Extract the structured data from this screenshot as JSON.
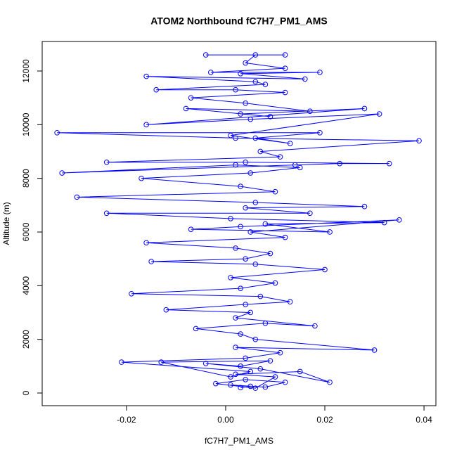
{
  "chart_data": {
    "type": "line",
    "title": "ATOM2 Northbound fC7H7_PM1_AMS",
    "x_label": "fC7H7_PM1_AMS",
    "y_label": "Altitude (m)",
    "color": "#0000ff",
    "marker": "circle",
    "grid": false,
    "xlim": [
      -0.037,
      0.0424
    ],
    "ylim": [
      -472,
      13100
    ],
    "xticks": [
      -0.02,
      {
        "value": 0,
        "label": "0.00"
      },
      0.02,
      0.04
    ],
    "yticks": [
      0,
      2000,
      4000,
      6000,
      8000,
      10000,
      12000
    ],
    "x": [
      0.003,
      0.005,
      0.001,
      0.008,
      0.012,
      0.004,
      -0.002,
      0.006,
      0.01,
      0.002,
      0.015,
      0.021,
      0.007,
      -0.004,
      0.003,
      0.009,
      -0.013,
      0.001,
      0.005,
      -0.021,
      0.004,
      0.011,
      0.002,
      0.03,
      0.006,
      0.003,
      -0.006,
      0.008,
      0.018,
      0.002,
      0.005,
      -0.012,
      0.004,
      0.013,
      0.007,
      -0.019,
      0.003,
      0.01,
      0.001,
      0.02,
      0.006,
      -0.015,
      0.004,
      0.009,
      0.002,
      -0.016,
      0.012,
      0.005,
      0.035,
      0.003,
      -0.007,
      0.021,
      0.008,
      0.032,
      0.001,
      -0.024,
      0.017,
      0.004,
      0.028,
      0.006,
      -0.03,
      0.01,
      0.003,
      -0.017,
      0.005,
      0.015,
      0.002,
      -0.033,
      0.014,
      0.023,
      0.033,
      0.004,
      -0.024,
      0.011,
      0.007,
      0.039,
      0.002,
      -0.034,
      0.019,
      0.006,
      0.013,
      0.001,
      0.031,
      0.005,
      -0.016,
      0.028,
      0.003,
      0.009,
      -0.008,
      0.017,
      0.004,
      -0.007,
      0.012,
      0.002,
      -0.014,
      0.008,
      0.006,
      -0.016,
      0.016,
      0.003,
      0.019,
      -0.003,
      0.012,
      0.004,
      0.006,
      -0.004,
      0.012
    ],
    "values": [
      200,
      250,
      300,
      220,
      400,
      500,
      350,
      180,
      600,
      700,
      800,
      400,
      900,
      1100,
      1000,
      1200,
      1150,
      600,
      800,
      1150,
      1300,
      1500,
      1700,
      1600,
      2000,
      2200,
      2400,
      2600,
      2500,
      2800,
      3000,
      3100,
      3300,
      3400,
      3600,
      3700,
      3900,
      4100,
      4300,
      4600,
      4800,
      4900,
      5000,
      5200,
      5400,
      5600,
      5800,
      6000,
      6450,
      6200,
      6100,
      6000,
      6300,
      6350,
      6500,
      6700,
      6700,
      6900,
      6950,
      7100,
      7300,
      7500,
      7700,
      8000,
      8200,
      8400,
      8500,
      8200,
      8500,
      8550,
      8550,
      8600,
      8600,
      8800,
      9000,
      9400,
      9500,
      9700,
      9700,
      9500,
      9300,
      9600,
      10400,
      10200,
      10000,
      10600,
      10400,
      10300,
      10600,
      10500,
      10800,
      11000,
      11200,
      11300,
      11300,
      11500,
      11600,
      11800,
      11700,
      11900,
      11950,
      11950,
      12100,
      12300,
      12600,
      12600,
      12600
    ]
  }
}
